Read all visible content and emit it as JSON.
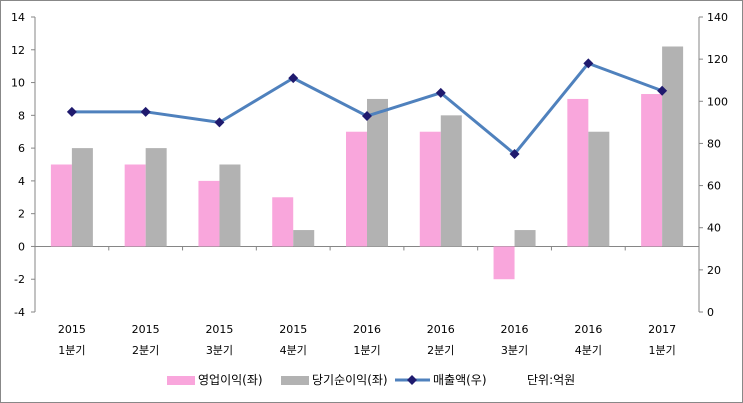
{
  "chart_data": {
    "type": "bar",
    "categories": [
      [
        "2015",
        "1분기"
      ],
      [
        "2015",
        "2분기"
      ],
      [
        "2015",
        "3분기"
      ],
      [
        "2015",
        "4분기"
      ],
      [
        "2016",
        "1분기"
      ],
      [
        "2016",
        "2분기"
      ],
      [
        "2016",
        "3분기"
      ],
      [
        "2016",
        "4분기"
      ],
      [
        "2017",
        "1분기"
      ]
    ],
    "series": [
      {
        "name": "영업이익(좌)",
        "type": "bar",
        "axis": "left",
        "color": "#f9a6dc",
        "values": [
          5,
          5,
          4,
          3,
          7,
          7,
          -2,
          9,
          9.3
        ]
      },
      {
        "name": "당기순이익(좌)",
        "type": "bar",
        "axis": "left",
        "color": "#b2b2b2",
        "values": [
          6,
          6,
          5,
          1,
          9,
          8,
          1,
          7,
          12.2
        ]
      },
      {
        "name": "매출액(우)",
        "type": "line",
        "axis": "right",
        "color": "#4f81bd",
        "marker_color": "#1f1a6e",
        "values": [
          95,
          95,
          90,
          111,
          93,
          104,
          75,
          118,
          105
        ]
      }
    ],
    "left_axis": {
      "min": -4,
      "max": 14,
      "step": 2,
      "ticks": [
        "-4",
        "-2",
        "0",
        "2",
        "4",
        "6",
        "8",
        "10",
        "12",
        "14"
      ]
    },
    "right_axis": {
      "min": 0,
      "max": 140,
      "step": 20,
      "ticks": [
        "0",
        "20",
        "40",
        "60",
        "80",
        "100",
        "120",
        "140"
      ]
    },
    "legend": {
      "position": "bottom",
      "unit_note": "단위:억원"
    },
    "grid": false
  }
}
